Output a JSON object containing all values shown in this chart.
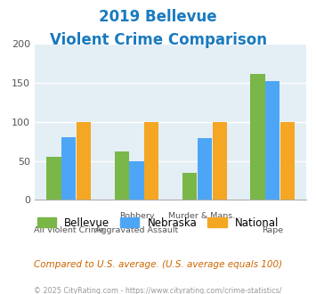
{
  "title_line1": "2019 Bellevue",
  "title_line2": "Violent Crime Comparison",
  "title_color": "#1a7abf",
  "bellevue": [
    55,
    62,
    35,
    162
  ],
  "nebraska": [
    80,
    50,
    79,
    152
  ],
  "national": [
    100,
    100,
    100,
    100
  ],
  "bellevue_color": "#7ab648",
  "nebraska_color": "#4da6f5",
  "national_color": "#f5a623",
  "ylim": [
    0,
    200
  ],
  "yticks": [
    0,
    50,
    100,
    150,
    200
  ],
  "plot_bg": "#e4eef5",
  "footer_text": "Compared to U.S. average. (U.S. average equals 100)",
  "footer_color": "#cc6600",
  "copyright_text": "© 2025 CityRating.com - https://www.cityrating.com/crime-statistics/",
  "copyright_color": "#999999",
  "legend_labels": [
    "Bellevue",
    "Nebraska",
    "National"
  ],
  "top_labels": [
    "",
    "Robbery",
    "Murder & Mans...",
    ""
  ],
  "bot_labels": [
    "All Violent Crime",
    "Aggravated Assault",
    "",
    "Rape"
  ]
}
